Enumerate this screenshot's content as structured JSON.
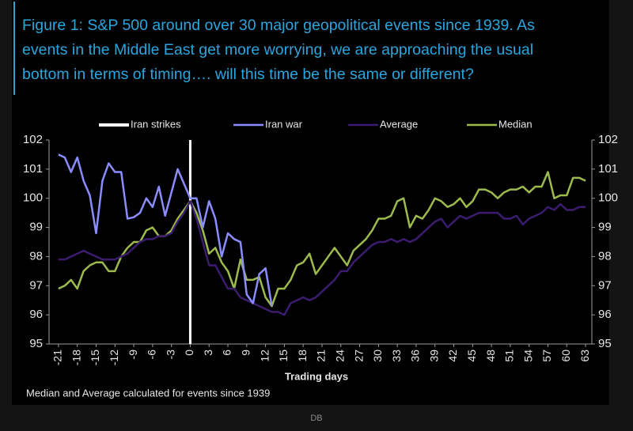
{
  "chart_data": {
    "type": "line",
    "title_lines": [
      "Figure 1: S&P 500 around over 30 major geopolitical events since 1939. As",
      "events in the Middle East get more worrying, we are approaching the usual",
      "bottom in terms of timing…. will this time be the same or different?"
    ],
    "x_label": "Trading days",
    "note": "Median and Average calculated for events since 1939",
    "source": "DB",
    "x": [
      -21,
      -20,
      -19,
      -18,
      -17,
      -16,
      -15,
      -14,
      -13,
      -12,
      -11,
      -10,
      -9,
      -8,
      -7,
      -6,
      -5,
      -4,
      -3,
      -2,
      -1,
      0,
      1,
      2,
      3,
      4,
      5,
      6,
      7,
      8,
      9,
      10,
      11,
      12,
      13,
      14,
      15,
      16,
      17,
      18,
      19,
      20,
      21,
      22,
      23,
      24,
      25,
      26,
      27,
      28,
      29,
      30,
      31,
      32,
      33,
      34,
      35,
      36,
      37,
      38,
      39,
      40,
      41,
      42,
      43,
      44,
      45,
      46,
      47,
      48,
      49,
      50,
      51,
      52,
      53,
      54,
      55,
      56,
      57,
      58,
      59,
      60,
      61,
      62,
      63
    ],
    "events": [
      {
        "name": "Iran strikes",
        "x": 0,
        "color": "#ffffff"
      }
    ],
    "series": [
      {
        "name": "Iran war",
        "color": "#8a8cff",
        "values": [
          101.5,
          101.4,
          100.9,
          101.4,
          100.6,
          100.1,
          98.8,
          100.6,
          101.2,
          100.9,
          100.9,
          99.3,
          99.35,
          99.5,
          100.0,
          99.7,
          100.4,
          99.4,
          100.2,
          101.0,
          100.5,
          100.0,
          100.0,
          99.0,
          99.9,
          99.3,
          98.0,
          98.8,
          98.6,
          98.5,
          96.7,
          96.4,
          97.4,
          97.6,
          96.3,
          null,
          null,
          null,
          null,
          null,
          null,
          null,
          null,
          null,
          null,
          null,
          null,
          null,
          null,
          null,
          null,
          null,
          null,
          null,
          null,
          null,
          null,
          null,
          null,
          null,
          null,
          null,
          null,
          null,
          null,
          null,
          null,
          null,
          null,
          null,
          null,
          null,
          null,
          null,
          null,
          null,
          null,
          null,
          null,
          null,
          null,
          null,
          null,
          null,
          null
        ]
      },
      {
        "name": "Average",
        "color": "#3b1c6e",
        "values": [
          97.9,
          97.9,
          98.0,
          98.1,
          98.2,
          98.1,
          98.0,
          97.9,
          97.9,
          97.9,
          98.0,
          98.1,
          98.3,
          98.5,
          98.6,
          98.6,
          98.7,
          98.7,
          98.8,
          99.2,
          99.5,
          99.9,
          99.3,
          98.5,
          97.7,
          97.7,
          97.3,
          96.9,
          96.9,
          96.6,
          96.5,
          96.4,
          96.3,
          96.2,
          96.1,
          96.1,
          96.0,
          96.4,
          96.5,
          96.6,
          96.5,
          96.6,
          96.8,
          97.0,
          97.2,
          97.5,
          97.5,
          97.8,
          98.0,
          98.2,
          98.4,
          98.5,
          98.5,
          98.6,
          98.5,
          98.6,
          98.5,
          98.6,
          98.8,
          99.0,
          99.2,
          99.3,
          99.0,
          99.2,
          99.4,
          99.3,
          99.4,
          99.5,
          99.5,
          99.5,
          99.5,
          99.3,
          99.3,
          99.4,
          99.1,
          99.3,
          99.4,
          99.5,
          99.7,
          99.6,
          99.8,
          99.6,
          99.6,
          99.7,
          99.7
        ]
      },
      {
        "name": "Median",
        "color": "#9dbb4c",
        "values": [
          96.9,
          97.0,
          97.2,
          96.9,
          97.5,
          97.7,
          97.8,
          97.8,
          97.5,
          97.5,
          98.0,
          98.3,
          98.5,
          98.5,
          98.9,
          99.0,
          98.7,
          98.7,
          98.9,
          99.3,
          99.6,
          99.9,
          99.5,
          98.9,
          98.1,
          98.3,
          97.8,
          97.5,
          96.9,
          97.9,
          97.2,
          97.2,
          97.3,
          96.6,
          96.3,
          96.9,
          96.9,
          97.2,
          97.7,
          97.8,
          98.1,
          97.4,
          97.7,
          98.0,
          98.3,
          98.0,
          97.7,
          98.2,
          98.4,
          98.6,
          98.9,
          99.3,
          99.3,
          99.4,
          99.9,
          100.0,
          99.0,
          99.4,
          99.3,
          99.6,
          100.0,
          99.9,
          99.7,
          99.8,
          100.0,
          99.7,
          99.9,
          100.3,
          100.3,
          100.2,
          100.0,
          100.2,
          100.3,
          100.3,
          100.4,
          100.2,
          100.4,
          100.4,
          100.9,
          100.0,
          100.1,
          100.1,
          100.7,
          100.7,
          100.6
        ]
      }
    ],
    "xlim": [
      -22.5,
      64
    ],
    "xticks": [
      -21,
      -18,
      -15,
      -12,
      -9,
      -6,
      -3,
      0,
      3,
      6,
      9,
      12,
      15,
      18,
      21,
      24,
      27,
      30,
      33,
      36,
      39,
      42,
      45,
      48,
      51,
      54,
      57,
      60,
      63
    ],
    "ylim": [
      95,
      102
    ],
    "yticks": [
      95,
      96,
      97,
      98,
      99,
      100,
      101,
      102
    ],
    "right_axis": true,
    "grid": false
  }
}
